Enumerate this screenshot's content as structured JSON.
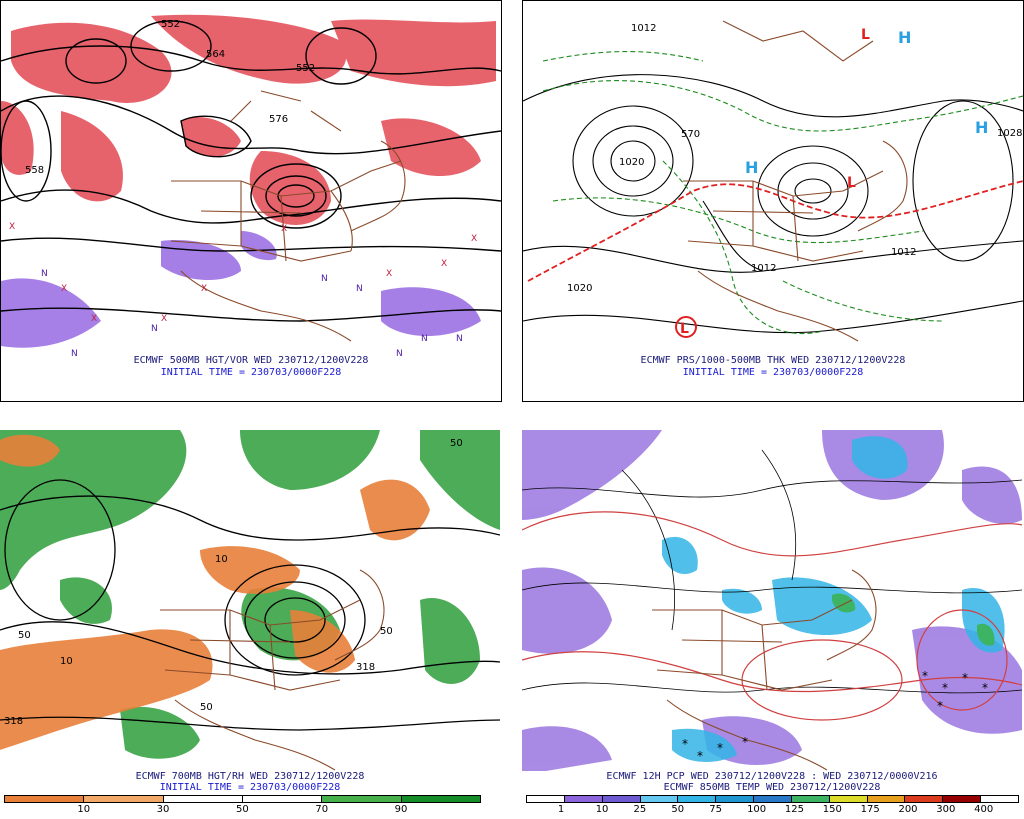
{
  "panels": [
    {
      "id": "p1",
      "caption_line1": "ECMWF 500MB HGT/VOR WED 230712/1200V228",
      "caption_line2": "INITIAL TIME = 230703/0000F228",
      "contour_labels": [
        "558",
        "576",
        "558",
        "552",
        "552",
        "564"
      ]
    },
    {
      "id": "p2",
      "caption_line1": "ECMWF PRS/1000-500MB THK WED 230712/1200V228",
      "caption_line2": "INITIAL TIME = 230703/0000F228",
      "contour_labels": [
        "1012",
        "1020",
        "1020",
        "1020",
        "1012",
        "1012",
        "1012",
        "1020",
        "1028",
        "570"
      ],
      "marker_labels": [
        "L",
        "L",
        "H",
        "H",
        "H"
      ]
    },
    {
      "id": "p3",
      "caption_line1": "ECMWF 700MB HGT/RH WED 230712/1200V228",
      "caption_line2": "INITIAL TIME = 230703/0000F228",
      "contour_labels": [
        "50",
        "10",
        "50",
        "50",
        "10",
        "318",
        "318",
        "50"
      ],
      "colorbar": {
        "ticks": [
          "10",
          "30",
          "50",
          "70",
          "90"
        ],
        "colors": [
          "#e8803a",
          "#f2a866",
          "#ffffff",
          "#ffffff",
          "#46b04a",
          "#148c28"
        ]
      }
    },
    {
      "id": "p4",
      "caption_line1": "ECMWF 12H PCP WED 230712/1200V228 : WED 230712/0000V216",
      "caption_line2": "ECMWF 850MB TEMP WED 230712/1200V228",
      "contour_labels": [],
      "colorbar": {
        "ticks": [
          "1",
          "10",
          "25",
          "50",
          "75",
          "100",
          "125",
          "150",
          "175",
          "200",
          "300",
          "400"
        ],
        "colors": [
          "#ffffff",
          "#8c64dc",
          "#6e5ad2",
          "#64c8f0",
          "#32b4e6",
          "#1e96d2",
          "#2878c8",
          "#3cb464",
          "#dcdc28",
          "#e6a01e",
          "#dc3c1e",
          "#960000",
          "#ffffff"
        ]
      }
    }
  ],
  "colors": {
    "vorticity": "#e0303c",
    "vorticity_neg": "#9060e0",
    "moist": "#2e9e3a",
    "dry": "#e8803a",
    "country": "#8a4a2a",
    "contour": "#000000",
    "thickness": "#1e8c1e",
    "precip": "#6a8cf0",
    "temp": "#d04040"
  }
}
